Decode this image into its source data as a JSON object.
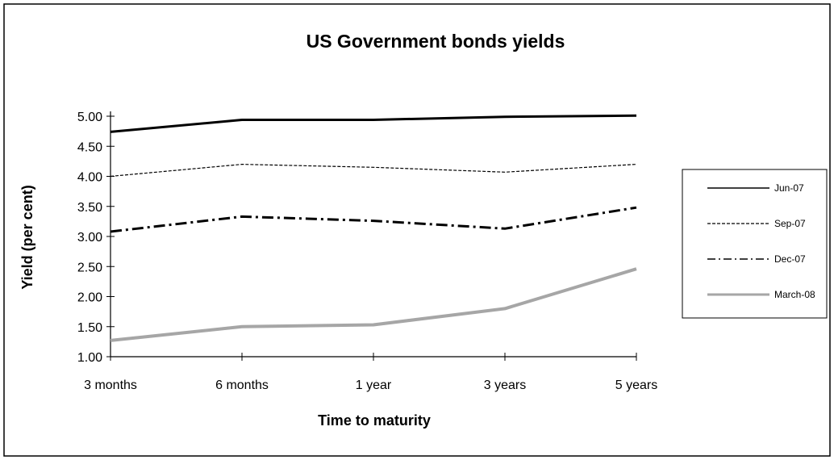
{
  "chart_data": {
    "type": "line",
    "title": "US Government bonds yields",
    "xlabel": "Time to maturity",
    "ylabel": "Yield (per cent)",
    "categories": [
      "3 months",
      "6 months",
      "1 year",
      "3 years",
      "5 years"
    ],
    "y_ticks": [
      "1.00",
      "1.50",
      "2.00",
      "2.50",
      "3.00",
      "3.50",
      "4.00",
      "4.50",
      "5.00"
    ],
    "ylim": [
      1.0,
      5.0
    ],
    "grid": false,
    "legend_position": "right",
    "series": [
      {
        "name": "Jun-07",
        "values": [
          4.74,
          4.94,
          4.94,
          4.99,
          5.01
        ],
        "color": "#000000",
        "style": "solid"
      },
      {
        "name": "Sep-07",
        "values": [
          4.0,
          4.2,
          4.15,
          4.07,
          4.2
        ],
        "color": "#000000",
        "style": "dashed"
      },
      {
        "name": "Dec-07",
        "values": [
          3.08,
          3.33,
          3.26,
          3.13,
          3.48
        ],
        "color": "#000000",
        "style": "dash-dot"
      },
      {
        "name": "March-08",
        "values": [
          1.27,
          1.5,
          1.53,
          1.8,
          2.46
        ],
        "color": "#a6a6a6",
        "style": "thick-gray"
      }
    ]
  }
}
